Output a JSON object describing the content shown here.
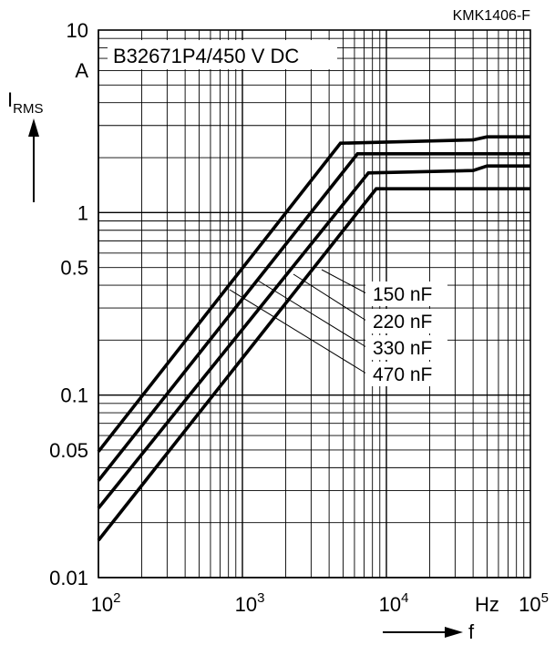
{
  "chart_data": {
    "type": "line",
    "code": "KMK1406-F",
    "title": "B32671P4/450 V DC",
    "ylabel_main": "I",
    "ylabel_sub": "RMS",
    "yunit": "A",
    "xlabel": "f",
    "xunit": "Hz",
    "x_scale": "log",
    "y_scale": "log",
    "xlim": [
      100,
      100000
    ],
    "ylim": [
      0.01,
      10
    ],
    "grid": true,
    "x_ticks": [
      {
        "value": 100,
        "base": "10",
        "exp": "2"
      },
      {
        "value": 1000,
        "base": "10",
        "exp": "3"
      },
      {
        "value": 10000,
        "base": "10",
        "exp": "4"
      },
      {
        "value": 100000,
        "base": "10",
        "exp": "5"
      }
    ],
    "y_ticks": [
      {
        "value": 10,
        "label": "10"
      },
      {
        "value": 1,
        "label": "1"
      },
      {
        "value": 0.5,
        "label": "0.5"
      },
      {
        "value": 0.1,
        "label": "0.1"
      },
      {
        "value": 0.05,
        "label": "0.05"
      },
      {
        "value": 0.01,
        "label": "0.01"
      }
    ],
    "series": [
      {
        "name": "150 nF",
        "x": [
          100,
          4800,
          40000,
          50000,
          100000
        ],
        "y": [
          0.049,
          2.4,
          2.5,
          2.6,
          2.6
        ]
      },
      {
        "name": "220 nF",
        "x": [
          100,
          6300,
          100000
        ],
        "y": [
          0.034,
          2.1,
          2.1
        ]
      },
      {
        "name": "330 nF",
        "x": [
          100,
          7500,
          40000,
          50000,
          100000
        ],
        "y": [
          0.024,
          1.65,
          1.7,
          1.8,
          1.8
        ]
      },
      {
        "name": "470 nF",
        "x": [
          100,
          8500,
          100000
        ],
        "y": [
          0.016,
          1.35,
          1.35
        ]
      }
    ]
  }
}
